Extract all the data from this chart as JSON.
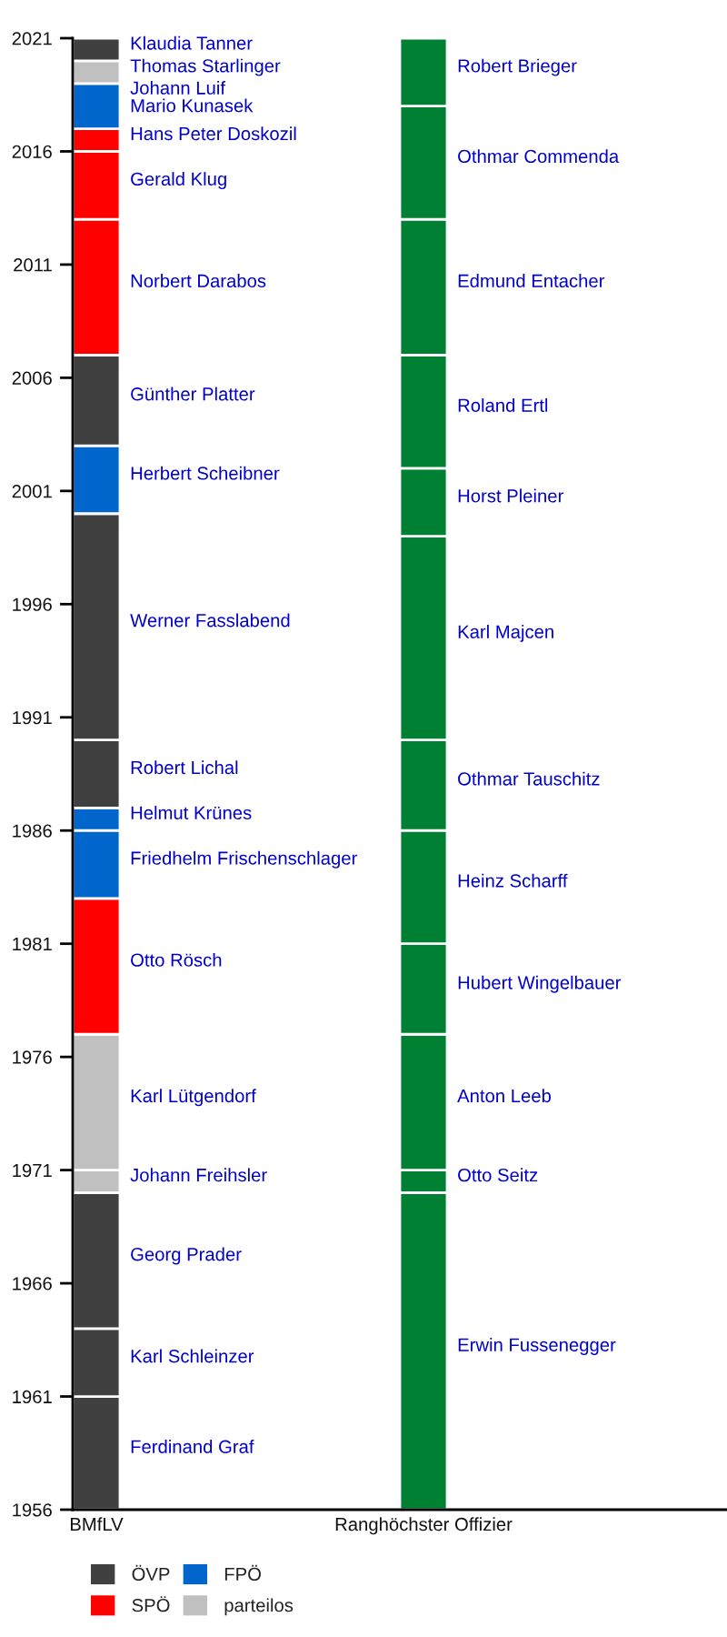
{
  "chart_data": {
    "type": "bar",
    "categories": [
      "BMfLV",
      "Ranghöchster Offizier"
    ],
    "ylim": [
      1956,
      2021
    ],
    "yticks": [
      1956,
      1961,
      1966,
      1971,
      1976,
      1981,
      1986,
      1991,
      1996,
      2001,
      2006,
      2011,
      2016,
      2021
    ],
    "legend": "bottom left",
    "annotations": [
      {
        "text": "Johann Luif",
        "x": "BMfLV",
        "y": 2019
      }
    ],
    "series": [
      {
        "name": "Ferdinand Graf",
        "color": "#404040",
        "x": [
          "BMfLV"
        ],
        "base": [
          1956
        ],
        "values": [
          5
        ]
      },
      {
        "name": "Karl Schleinzer",
        "color": "#404040",
        "x": [
          "BMfLV"
        ],
        "base": [
          1961
        ],
        "values": [
          3
        ]
      },
      {
        "name": "Georg Prader",
        "color": "#404040",
        "x": [
          "BMfLV"
        ],
        "base": [
          1964
        ],
        "values": [
          6
        ]
      },
      {
        "name": "Johann Freihsler",
        "color": "#c0c0c0",
        "x": [
          "BMfLV"
        ],
        "base": [
          1970
        ],
        "values": [
          1
        ]
      },
      {
        "name": "Karl Lütgendorf",
        "color": "#c0c0c0",
        "x": [
          "BMfLV"
        ],
        "base": [
          1971
        ],
        "values": [
          6
        ]
      },
      {
        "name": "Otto Rösch",
        "color": "#ff0000",
        "x": [
          "BMfLV"
        ],
        "base": [
          1977
        ],
        "values": [
          6
        ]
      },
      {
        "name": "Friedhelm Frischenschlager",
        "color": "#0066cc",
        "x": [
          "BMfLV"
        ],
        "base": [
          1983
        ],
        "values": [
          3
        ]
      },
      {
        "name": "Helmut Krünes",
        "color": "#0066cc",
        "x": [
          "BMfLV"
        ],
        "base": [
          1986
        ],
        "values": [
          1
        ]
      },
      {
        "name": "Robert Lichal",
        "color": "#404040",
        "x": [
          "BMfLV"
        ],
        "base": [
          1987
        ],
        "values": [
          3
        ]
      },
      {
        "name": "Werner Fasslabend",
        "color": "#404040",
        "x": [
          "BMfLV"
        ],
        "base": [
          1990
        ],
        "values": [
          10
        ]
      },
      {
        "name": "Herbert Scheibner",
        "color": "#0066cc",
        "x": [
          "BMfLV"
        ],
        "base": [
          2000
        ],
        "values": [
          3
        ]
      },
      {
        "name": "Günther Platter",
        "color": "#404040",
        "x": [
          "BMfLV"
        ],
        "base": [
          2003
        ],
        "values": [
          4
        ]
      },
      {
        "name": "Norbert Darabos",
        "color": "#ff0000",
        "x": [
          "BMfLV"
        ],
        "base": [
          2007
        ],
        "values": [
          6
        ]
      },
      {
        "name": "Gerald Klug",
        "color": "#ff0000",
        "x": [
          "BMfLV"
        ],
        "base": [
          2013
        ],
        "values": [
          3
        ]
      },
      {
        "name": "Hans Peter Doskozil",
        "color": "#ff0000",
        "x": [
          "BMfLV"
        ],
        "base": [
          2016
        ],
        "values": [
          1
        ]
      },
      {
        "name": "Mario Kunasek",
        "color": "#0066cc",
        "x": [
          "BMfLV"
        ],
        "base": [
          2017
        ],
        "values": [
          2
        ]
      },
      {
        "name": "Thomas Starlinger",
        "color": "#c0c0c0",
        "x": [
          "BMfLV"
        ],
        "base": [
          2019
        ],
        "values": [
          1
        ]
      },
      {
        "name": "Klaudia Tanner",
        "color": "#404040",
        "x": [
          "BMfLV"
        ],
        "base": [
          2020
        ],
        "values": [
          1
        ]
      },
      {
        "name": "Erwin Fussenegger",
        "color": "#008033",
        "x": [
          "Ranghöchster Offizier"
        ],
        "base": [
          1956
        ],
        "values": [
          14
        ]
      },
      {
        "name": "Otto Seitz",
        "color": "#008033",
        "x": [
          "Ranghöchster Offizier"
        ],
        "base": [
          1970
        ],
        "values": [
          1
        ]
      },
      {
        "name": "Anton Leeb",
        "color": "#008033",
        "x": [
          "Ranghöchster Offizier"
        ],
        "base": [
          1971
        ],
        "values": [
          6
        ]
      },
      {
        "name": "Hubert Wingelbauer",
        "color": "#008033",
        "x": [
          "Ranghöchster Offizier"
        ],
        "base": [
          1977
        ],
        "values": [
          4
        ]
      },
      {
        "name": "Heinz Scharff",
        "color": "#008033",
        "x": [
          "Ranghöchster Offizier"
        ],
        "base": [
          1981
        ],
        "values": [
          5
        ]
      },
      {
        "name": "Othmar Tauschitz",
        "color": "#008033",
        "x": [
          "Ranghöchster Offizier"
        ],
        "base": [
          1986
        ],
        "values": [
          4
        ]
      },
      {
        "name": "Karl Majcen",
        "color": "#008033",
        "x": [
          "Ranghöchster Offizier"
        ],
        "base": [
          1990
        ],
        "values": [
          9
        ]
      },
      {
        "name": "Horst Pleiner",
        "color": "#008033",
        "x": [
          "Ranghöchster Offizier"
        ],
        "base": [
          1999
        ],
        "values": [
          3
        ]
      },
      {
        "name": "Roland Ertl",
        "color": "#008033",
        "x": [
          "Ranghöchster Offizier"
        ],
        "base": [
          2002
        ],
        "values": [
          5
        ]
      },
      {
        "name": "Edmund Entacher",
        "color": "#008033",
        "x": [
          "Ranghöchster Offizier"
        ],
        "base": [
          2007
        ],
        "values": [
          6
        ]
      },
      {
        "name": "Othmar Commenda",
        "color": "#008033",
        "x": [
          "Ranghöchster Offizier"
        ],
        "base": [
          2013
        ],
        "values": [
          5
        ]
      },
      {
        "name": "Robert Brieger",
        "color": "#008033",
        "x": [
          "Ranghöchster Offizier"
        ],
        "base": [
          2018
        ],
        "values": [
          3
        ]
      },
      {
        "name": "ÖVP",
        "color": "#404040",
        "values": [
          null,
          null
        ]
      },
      {
        "name": "SPÖ",
        "color": "#ff0000",
        "values": [
          null,
          null
        ]
      },
      {
        "name": "FPÖ",
        "color": "#0066cc",
        "values": [
          null,
          null
        ]
      },
      {
        "name": "parteilos",
        "color": "#c0c0c0",
        "values": [
          null,
          null
        ]
      }
    ]
  }
}
